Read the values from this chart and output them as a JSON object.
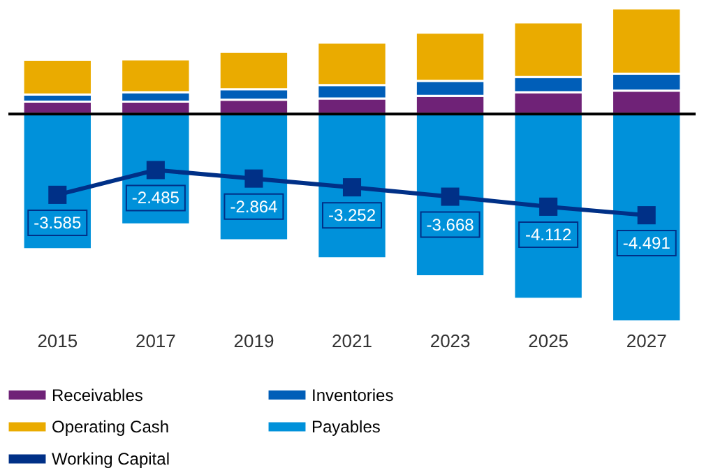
{
  "chart_data": {
    "type": "bar",
    "stacked": true,
    "categories": [
      "2015",
      "2017",
      "2019",
      "2021",
      "2023",
      "2025",
      "2027"
    ],
    "series": [
      {
        "name": "Receivables",
        "color": "#6f2277",
        "values": [
          0.55,
          0.55,
          0.64,
          0.69,
          0.81,
          0.97,
          1.04
        ]
      },
      {
        "name": "Inventories",
        "color": "#005eb8",
        "values": [
          0.32,
          0.42,
          0.46,
          0.6,
          0.66,
          0.67,
          0.75
        ]
      },
      {
        "name": "Operating Cash",
        "color": "#eaab00",
        "values": [
          1.54,
          1.46,
          1.66,
          1.88,
          2.14,
          2.43,
          2.9
        ]
      },
      {
        "name": "Payables",
        "color": "#0091da",
        "values": [
          -6.0,
          -4.9,
          -5.6,
          -6.4,
          -7.2,
          -8.2,
          -9.2
        ]
      },
      {
        "name": "Working Capital",
        "type": "line",
        "color": "#003087",
        "marker": "square",
        "values": [
          -3.585,
          -2.485,
          -2.864,
          -3.252,
          -3.668,
          -4.112,
          -4.491
        ],
        "value_labels": [
          "-3.585",
          "-2.485",
          "-2.864",
          "-3.252",
          "-3.668",
          "-4.112",
          "-4.491"
        ]
      }
    ],
    "tick_labels": "x",
    "grid": false,
    "legend": "bottom",
    "ref_lines": [
      {
        "axis": "y",
        "value": 0,
        "color": "#000000"
      }
    ]
  }
}
